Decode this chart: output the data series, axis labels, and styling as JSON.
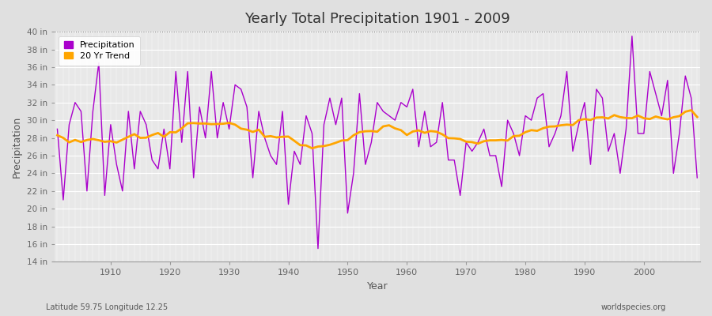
{
  "title": "Yearly Total Precipitation 1901 - 2009",
  "xlabel": "Year",
  "ylabel": "Precipitation",
  "subtitle_left": "Latitude 59.75 Longitude 12.25",
  "subtitle_right": "worldspecies.org",
  "ylim": [
    14,
    40
  ],
  "yticks": [
    14,
    16,
    18,
    20,
    22,
    24,
    26,
    28,
    30,
    32,
    34,
    36,
    38,
    40
  ],
  "years": [
    1901,
    1902,
    1903,
    1904,
    1905,
    1906,
    1907,
    1908,
    1909,
    1910,
    1911,
    1912,
    1913,
    1914,
    1915,
    1916,
    1917,
    1918,
    1919,
    1920,
    1921,
    1922,
    1923,
    1924,
    1925,
    1926,
    1927,
    1928,
    1929,
    1930,
    1931,
    1932,
    1933,
    1934,
    1935,
    1936,
    1937,
    1938,
    1939,
    1940,
    1941,
    1942,
    1943,
    1944,
    1945,
    1946,
    1947,
    1948,
    1949,
    1950,
    1951,
    1952,
    1953,
    1954,
    1955,
    1956,
    1957,
    1958,
    1959,
    1960,
    1961,
    1962,
    1963,
    1964,
    1965,
    1966,
    1967,
    1968,
    1969,
    1970,
    1971,
    1972,
    1973,
    1974,
    1975,
    1976,
    1977,
    1978,
    1979,
    1980,
    1981,
    1982,
    1983,
    1984,
    1985,
    1986,
    1987,
    1988,
    1989,
    1990,
    1991,
    1992,
    1993,
    1994,
    1995,
    1996,
    1997,
    1998,
    1999,
    2000,
    2001,
    2002,
    2003,
    2004,
    2005,
    2006,
    2007,
    2008,
    2009
  ],
  "precip": [
    29.0,
    21.0,
    29.5,
    32.0,
    31.0,
    22.0,
    31.0,
    36.5,
    21.5,
    29.5,
    25.0,
    22.0,
    31.0,
    24.5,
    31.0,
    29.5,
    25.5,
    24.5,
    29.0,
    24.5,
    35.5,
    27.5,
    35.5,
    23.5,
    31.5,
    28.0,
    35.5,
    28.0,
    32.0,
    29.0,
    34.0,
    33.5,
    31.5,
    23.5,
    31.0,
    28.0,
    26.0,
    25.0,
    31.0,
    20.5,
    26.5,
    25.0,
    30.5,
    28.5,
    15.5,
    29.5,
    32.5,
    29.5,
    32.5,
    19.5,
    24.0,
    33.0,
    25.0,
    27.5,
    32.0,
    31.0,
    30.5,
    30.0,
    32.0,
    31.5,
    33.5,
    27.0,
    31.0,
    27.0,
    27.5,
    32.0,
    25.5,
    25.5,
    21.5,
    27.5,
    26.5,
    27.5,
    29.0,
    26.0,
    26.0,
    22.5,
    30.0,
    28.5,
    26.0,
    30.5,
    30.0,
    32.5,
    33.0,
    27.0,
    28.5,
    30.5,
    35.5,
    26.5,
    29.5,
    32.0,
    25.0,
    33.5,
    32.5,
    26.5,
    28.5,
    24.0,
    29.0,
    39.5,
    28.5,
    28.5,
    35.5,
    33.0,
    30.5,
    34.5,
    24.0,
    28.5,
    35.0,
    32.5,
    23.5
  ],
  "precip_color": "#AA00CC",
  "trend_color": "#FFA500",
  "fig_bg_color": "#E0E0E0",
  "plot_bg_color": "#E8E8E8",
  "grid_color": "#FFFFFF",
  "top_dashed_color": "#888888",
  "legend_bg": "#FFFFFF",
  "tick_color": "#666666",
  "title_color": "#333333",
  "label_color": "#555555"
}
